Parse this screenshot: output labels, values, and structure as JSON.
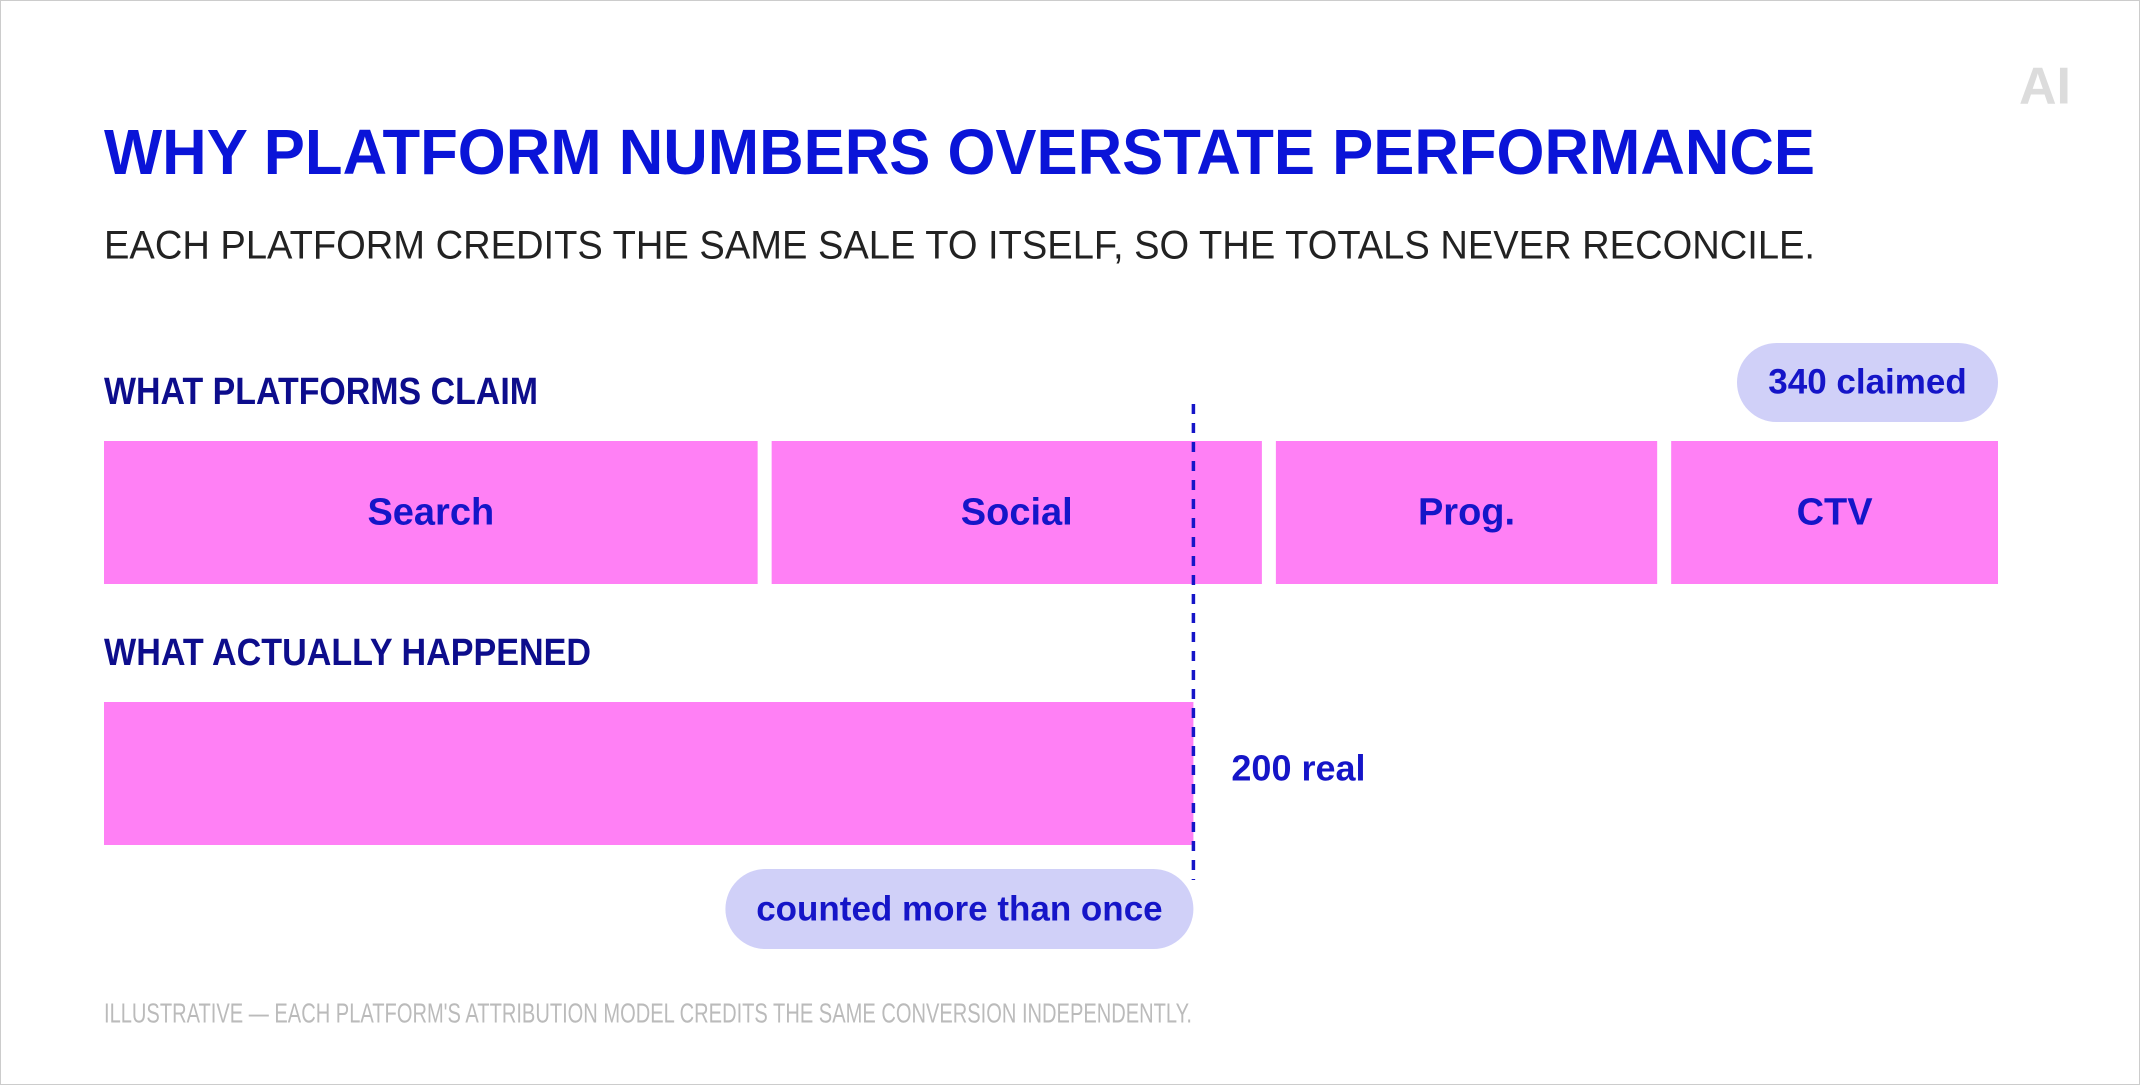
{
  "chart_data": {
    "type": "stacked_bar",
    "title": "WHY PLATFORM NUMBERS OVERSTATE PERFORMANCE",
    "subtitle": "EACH PLATFORM CREDITS THE SAME SALE TO ITSELF, SO THE TOTALS NEVER RECONCILE.",
    "groups": [
      {
        "name": "WHAT PLATFORMS CLAIM",
        "categories": [
          "Search",
          "Social",
          "Prog.",
          "CTV"
        ],
        "values": [
          120,
          90,
          70,
          60
        ]
      },
      {
        "name": "WHAT ACTUALLY HAPPENED",
        "values": [
          200
        ]
      }
    ],
    "color": "#ff80f5",
    "label_color": "#1515c8",
    "annotations": {
      "claimed": "340 claimed",
      "real": "200 real",
      "overlap": "counted more than once"
    },
    "footnote": "ILLUSTRATIVE — EACH PLATFORM'S ATTRIBUTION MODEL CREDITS THE SAME CONVERSION INDEPENDENTLY.",
    "logo": "AI"
  }
}
